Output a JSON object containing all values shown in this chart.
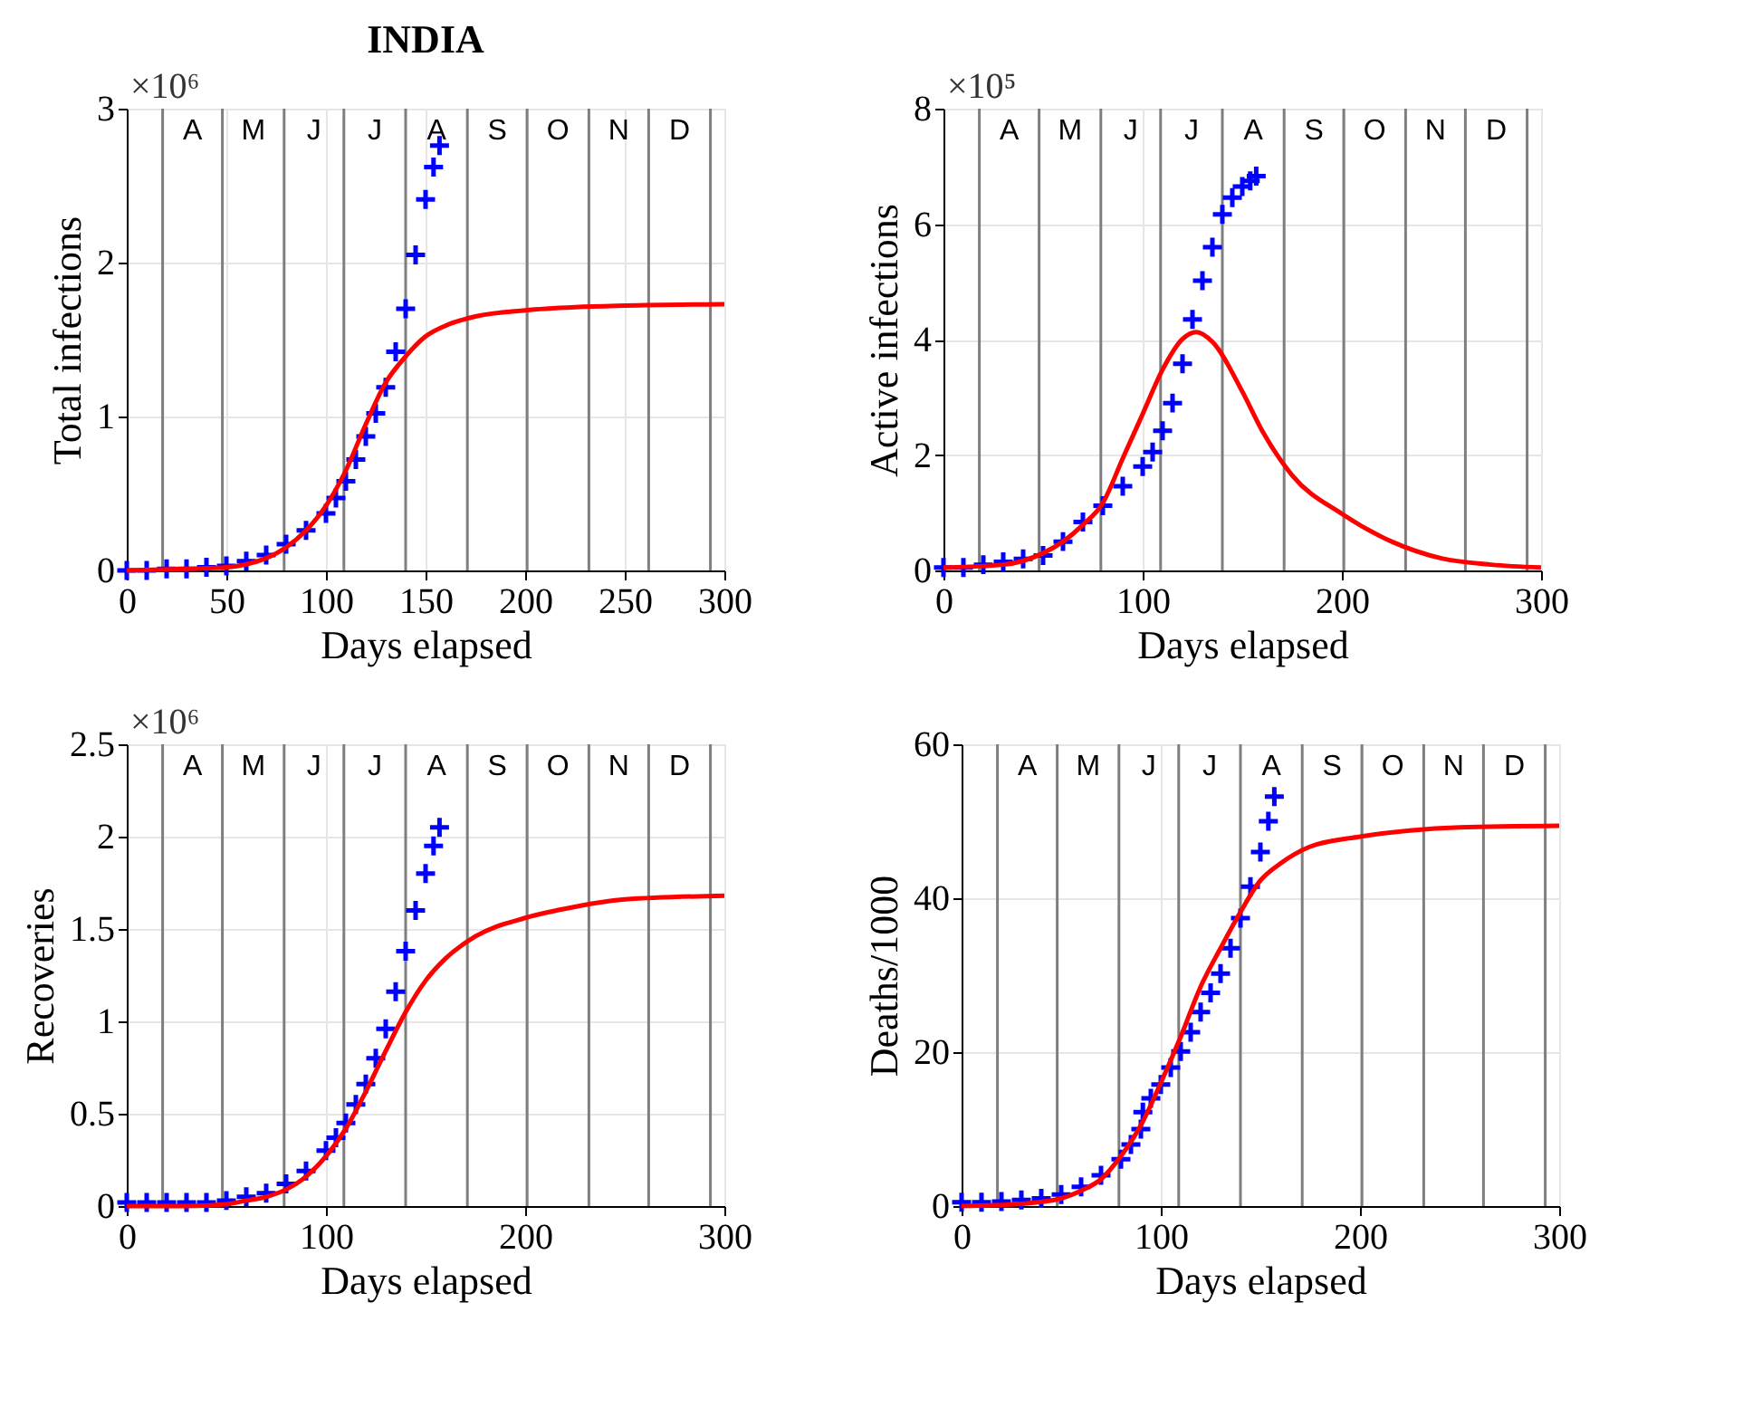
{
  "chart_data": [
    {
      "type": "line",
      "title": "INDIA",
      "xlabel": "Days elapsed",
      "ylabel": "Total  infections",
      "xlim": [
        0,
        300
      ],
      "xticks": [
        0,
        50,
        100,
        150,
        200,
        250,
        300
      ],
      "ylim": [
        0,
        3
      ],
      "yticks": [
        0,
        1,
        2,
        3
      ],
      "grid": true,
      "marker": "none",
      "line_style": "solid",
      "annotations": [
        "×10⁶"
      ],
      "ref_lines": [
        {
          "axis": "x",
          "value": 18,
          "label": "A"
        },
        {
          "axis": "x",
          "value": 48,
          "label": "M"
        },
        {
          "axis": "x",
          "value": 79,
          "label": "J"
        },
        {
          "axis": "x",
          "value": 109,
          "label": "J"
        },
        {
          "axis": "x",
          "value": 140,
          "label": "A"
        },
        {
          "axis": "x",
          "value": 171,
          "label": "S"
        },
        {
          "axis": "x",
          "value": 201,
          "label": "O"
        },
        {
          "axis": "x",
          "value": 232,
          "label": "N"
        },
        {
          "axis": "x",
          "value": 262,
          "label": "D"
        },
        {
          "axis": "x",
          "value": 293,
          "label": null
        }
      ],
      "series": [
        {
          "type": "scatter",
          "marker": "cross",
          "color": "#0000ff",
          "x": [
            0,
            10,
            20,
            30,
            40,
            50,
            60,
            70,
            80,
            90,
            100,
            105,
            110,
            115,
            120,
            125,
            130,
            135,
            140,
            145,
            150,
            154,
            157
          ],
          "values": [
            0.0,
            0.0,
            0.01,
            0.01,
            0.02,
            0.03,
            0.06,
            0.1,
            0.17,
            0.26,
            0.37,
            0.47,
            0.58,
            0.72,
            0.87,
            1.02,
            1.19,
            1.42,
            1.7,
            2.05,
            2.41,
            2.62,
            2.76
          ]
        },
        {
          "color": "#ff0000",
          "x": [
            0,
            30,
            50,
            60,
            70,
            80,
            90,
            100,
            110,
            120,
            130,
            140,
            150,
            160,
            175,
            200,
            225,
            250,
            300
          ],
          "values": [
            0.0,
            0.01,
            0.02,
            0.04,
            0.08,
            0.15,
            0.26,
            0.42,
            0.65,
            0.95,
            1.22,
            1.39,
            1.52,
            1.59,
            1.65,
            1.69,
            1.71,
            1.72,
            1.73
          ]
        }
      ]
    },
    {
      "type": "line",
      "xlabel": "Days elapsed",
      "ylabel": "Active  infections",
      "xlim": [
        0,
        300
      ],
      "xticks": [
        0,
        100,
        200,
        300
      ],
      "ylim": [
        0,
        8
      ],
      "yticks": [
        0,
        2,
        4,
        6,
        8
      ],
      "grid": true,
      "marker": "none",
      "line_style": "solid",
      "annotations": [
        "×10⁵"
      ],
      "ref_lines": [
        {
          "axis": "x",
          "value": 18,
          "label": "A"
        },
        {
          "axis": "x",
          "value": 48,
          "label": "M"
        },
        {
          "axis": "x",
          "value": 79,
          "label": "J"
        },
        {
          "axis": "x",
          "value": 109,
          "label": "J"
        },
        {
          "axis": "x",
          "value": 140,
          "label": "A"
        },
        {
          "axis": "x",
          "value": 171,
          "label": "S"
        },
        {
          "axis": "x",
          "value": 201,
          "label": "O"
        },
        {
          "axis": "x",
          "value": 232,
          "label": "N"
        },
        {
          "axis": "x",
          "value": 262,
          "label": "D"
        },
        {
          "axis": "x",
          "value": 293,
          "label": null
        }
      ],
      "series": [
        {
          "type": "scatter",
          "marker": "cross",
          "color": "#0000ff",
          "x": [
            0,
            10,
            20,
            30,
            40,
            50,
            60,
            70,
            80,
            90,
            100,
            105,
            110,
            115,
            120,
            125,
            130,
            135,
            140,
            145,
            150,
            154,
            157
          ],
          "values": [
            0.05,
            0.05,
            0.1,
            0.15,
            0.2,
            0.26,
            0.5,
            0.84,
            1.12,
            1.46,
            1.8,
            2.05,
            2.42,
            2.9,
            3.58,
            4.35,
            5.02,
            5.6,
            6.17,
            6.46,
            6.65,
            6.75,
            6.83
          ]
        },
        {
          "color": "#ff0000",
          "x": [
            0,
            30,
            50,
            60,
            70,
            80,
            90,
            100,
            110,
            120,
            127,
            135,
            150,
            160,
            175,
            200,
            225,
            250,
            275,
            300
          ],
          "values": [
            0.05,
            0.1,
            0.3,
            0.5,
            0.79,
            1.17,
            1.94,
            2.71,
            3.48,
            4.01,
            4.13,
            3.96,
            3.1,
            2.42,
            1.65,
            0.98,
            0.5,
            0.21,
            0.1,
            0.05
          ]
        }
      ]
    },
    {
      "type": "line",
      "xlabel": "Days elapsed",
      "ylabel": "Recoveries",
      "xlim": [
        0,
        300
      ],
      "xticks": [
        0,
        100,
        200,
        300
      ],
      "ylim": [
        0,
        2.5
      ],
      "yticks": [
        0,
        0.5,
        1,
        1.5,
        2,
        2.5
      ],
      "grid": true,
      "marker": "none",
      "line_style": "solid",
      "annotations": [
        "×10⁶"
      ],
      "ref_lines": [
        {
          "axis": "x",
          "value": 18,
          "label": "A"
        },
        {
          "axis": "x",
          "value": 48,
          "label": "M"
        },
        {
          "axis": "x",
          "value": 79,
          "label": "J"
        },
        {
          "axis": "x",
          "value": 109,
          "label": "J"
        },
        {
          "axis": "x",
          "value": 140,
          "label": "A"
        },
        {
          "axis": "x",
          "value": 171,
          "label": "S"
        },
        {
          "axis": "x",
          "value": 201,
          "label": "O"
        },
        {
          "axis": "x",
          "value": 232,
          "label": "N"
        },
        {
          "axis": "x",
          "value": 262,
          "label": "D"
        },
        {
          "axis": "x",
          "value": 293,
          "label": null
        }
      ],
      "series": [
        {
          "type": "scatter",
          "marker": "cross",
          "color": "#0000ff",
          "x": [
            0,
            10,
            20,
            30,
            40,
            50,
            60,
            70,
            80,
            90,
            100,
            105,
            110,
            115,
            120,
            125,
            130,
            135,
            140,
            145,
            150,
            154,
            157
          ],
          "values": [
            0.02,
            0.02,
            0.02,
            0.02,
            0.02,
            0.03,
            0.05,
            0.07,
            0.12,
            0.19,
            0.3,
            0.37,
            0.45,
            0.55,
            0.66,
            0.8,
            0.96,
            1.16,
            1.38,
            1.6,
            1.8,
            1.95,
            2.05
          ]
        },
        {
          "color": "#ff0000",
          "x": [
            0,
            30,
            50,
            60,
            70,
            80,
            90,
            100,
            110,
            120,
            130,
            140,
            150,
            160,
            175,
            200,
            225,
            250,
            300
          ],
          "values": [
            0.0,
            0.0,
            0.01,
            0.03,
            0.05,
            0.09,
            0.16,
            0.27,
            0.42,
            0.62,
            0.84,
            1.05,
            1.22,
            1.34,
            1.46,
            1.56,
            1.62,
            1.66,
            1.68
          ]
        }
      ]
    },
    {
      "type": "line",
      "xlabel": "Days elapsed",
      "ylabel": "Deaths/1000",
      "xlim": [
        0,
        300
      ],
      "xticks": [
        0,
        100,
        200,
        300
      ],
      "ylim": [
        0,
        60
      ],
      "yticks": [
        0,
        20,
        40,
        60
      ],
      "grid": true,
      "marker": "none",
      "line_style": "solid",
      "ref_lines": [
        {
          "axis": "x",
          "value": 18,
          "label": "A"
        },
        {
          "axis": "x",
          "value": 48,
          "label": "M"
        },
        {
          "axis": "x",
          "value": 79,
          "label": "J"
        },
        {
          "axis": "x",
          "value": 109,
          "label": "J"
        },
        {
          "axis": "x",
          "value": 140,
          "label": "A"
        },
        {
          "axis": "x",
          "value": 171,
          "label": "S"
        },
        {
          "axis": "x",
          "value": 201,
          "label": "O"
        },
        {
          "axis": "x",
          "value": 232,
          "label": "N"
        },
        {
          "axis": "x",
          "value": 262,
          "label": "D"
        },
        {
          "axis": "x",
          "value": 293,
          "label": null
        }
      ],
      "series": [
        {
          "type": "scatter",
          "marker": "cross",
          "color": "#0000ff",
          "x": [
            0,
            10,
            20,
            30,
            40,
            50,
            60,
            70,
            80,
            85,
            90,
            91,
            95,
            100,
            105,
            110,
            115,
            120,
            125,
            130,
            135,
            140,
            145,
            150,
            154,
            157
          ],
          "values": [
            0.5,
            0.5,
            0.6,
            0.8,
            1,
            1.5,
            2.5,
            4,
            6.1,
            8,
            10,
            12.2,
            14,
            15.8,
            18,
            20.1,
            22.6,
            25.2,
            27.7,
            30.2,
            33.5,
            37.4,
            41.5,
            46,
            50,
            53.2
          ]
        },
        {
          "color": "#ff0000",
          "x": [
            0,
            30,
            50,
            60,
            70,
            80,
            90,
            100,
            110,
            120,
            130,
            140,
            150,
            160,
            175,
            200,
            225,
            250,
            300
          ],
          "values": [
            0,
            0.3,
            1,
            2,
            3.5,
            6.5,
            10.5,
            16,
            22,
            28.5,
            33.5,
            38.2,
            42.3,
            44.5,
            46.7,
            48,
            48.8,
            49.2,
            49.4
          ]
        }
      ]
    }
  ]
}
